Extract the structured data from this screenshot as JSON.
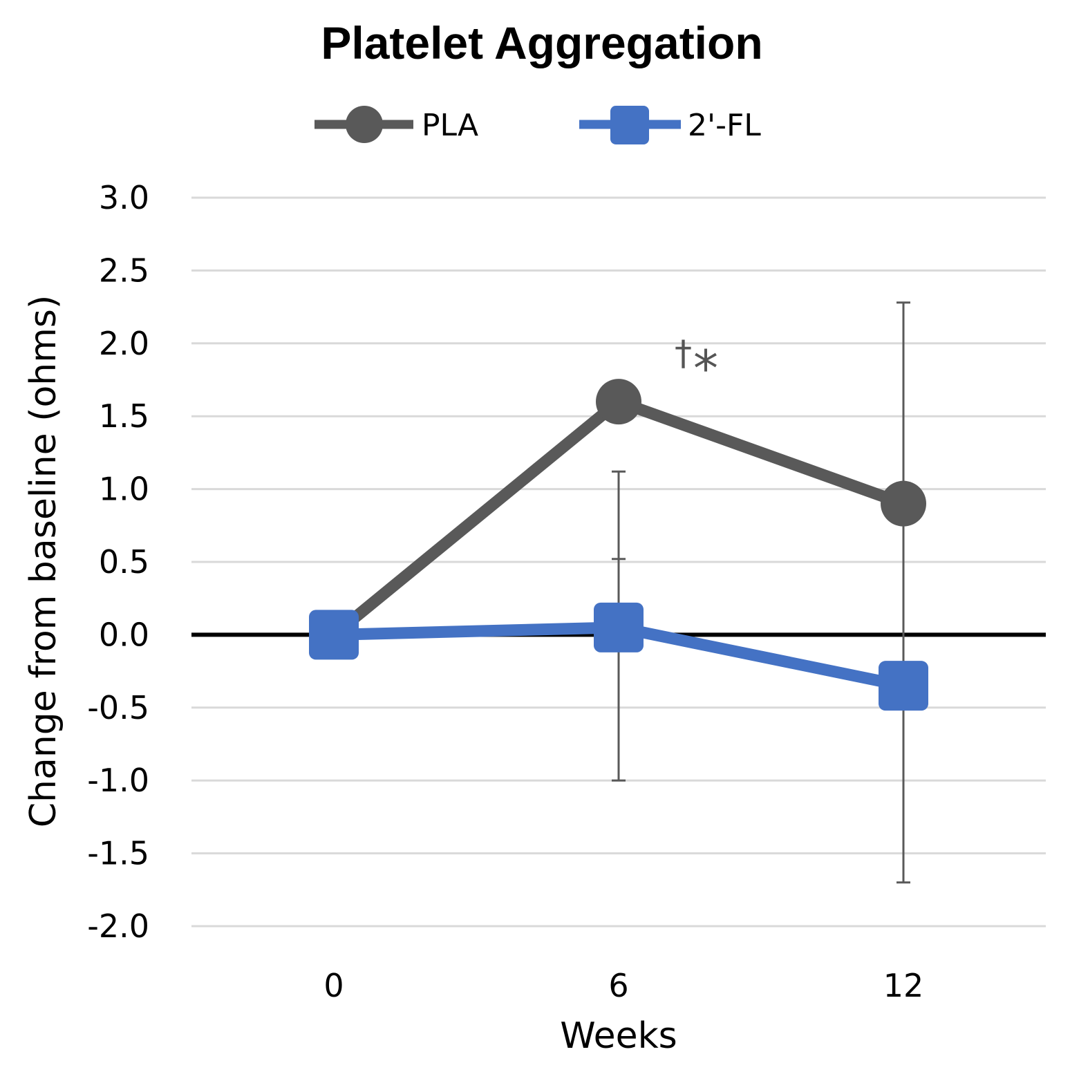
{
  "chart_data": {
    "type": "line",
    "title": "Platelet Aggregation",
    "xlabel": "Weeks",
    "ylabel": "Change from baseline (ohms)",
    "categories": [
      "0",
      "6",
      "12"
    ],
    "ylim": [
      -2.0,
      3.0
    ],
    "yticks": [
      "3.0",
      "2.5",
      "2.0",
      "1.5",
      "1.0",
      "0.5",
      "0.0",
      "-0.5",
      "-1.0",
      "-1.5",
      "-2.0"
    ],
    "ytick_values": [
      3.0,
      2.5,
      2.0,
      1.5,
      1.0,
      0.5,
      0.0,
      -0.5,
      -1.0,
      -1.5,
      -2.0
    ],
    "grid": true,
    "legend_position": "top",
    "series": [
      {
        "name": "PLA",
        "color": "#595959",
        "marker": "circle",
        "values": [
          0.0,
          1.6,
          0.9
        ],
        "error_low": [
          null,
          -1.0,
          -1.7
        ],
        "error_high": [
          null,
          1.12,
          2.28
        ]
      },
      {
        "name": "2'-FL",
        "color": "#4472C4",
        "marker": "square",
        "values": [
          0.0,
          0.05,
          -0.35
        ],
        "error_low": [
          null,
          null,
          null
        ],
        "error_high": [
          null,
          0.52,
          null
        ]
      }
    ],
    "annotations": [
      {
        "text": "†",
        "x": "6"
      },
      {
        "text": "*",
        "x": "6"
      }
    ]
  }
}
